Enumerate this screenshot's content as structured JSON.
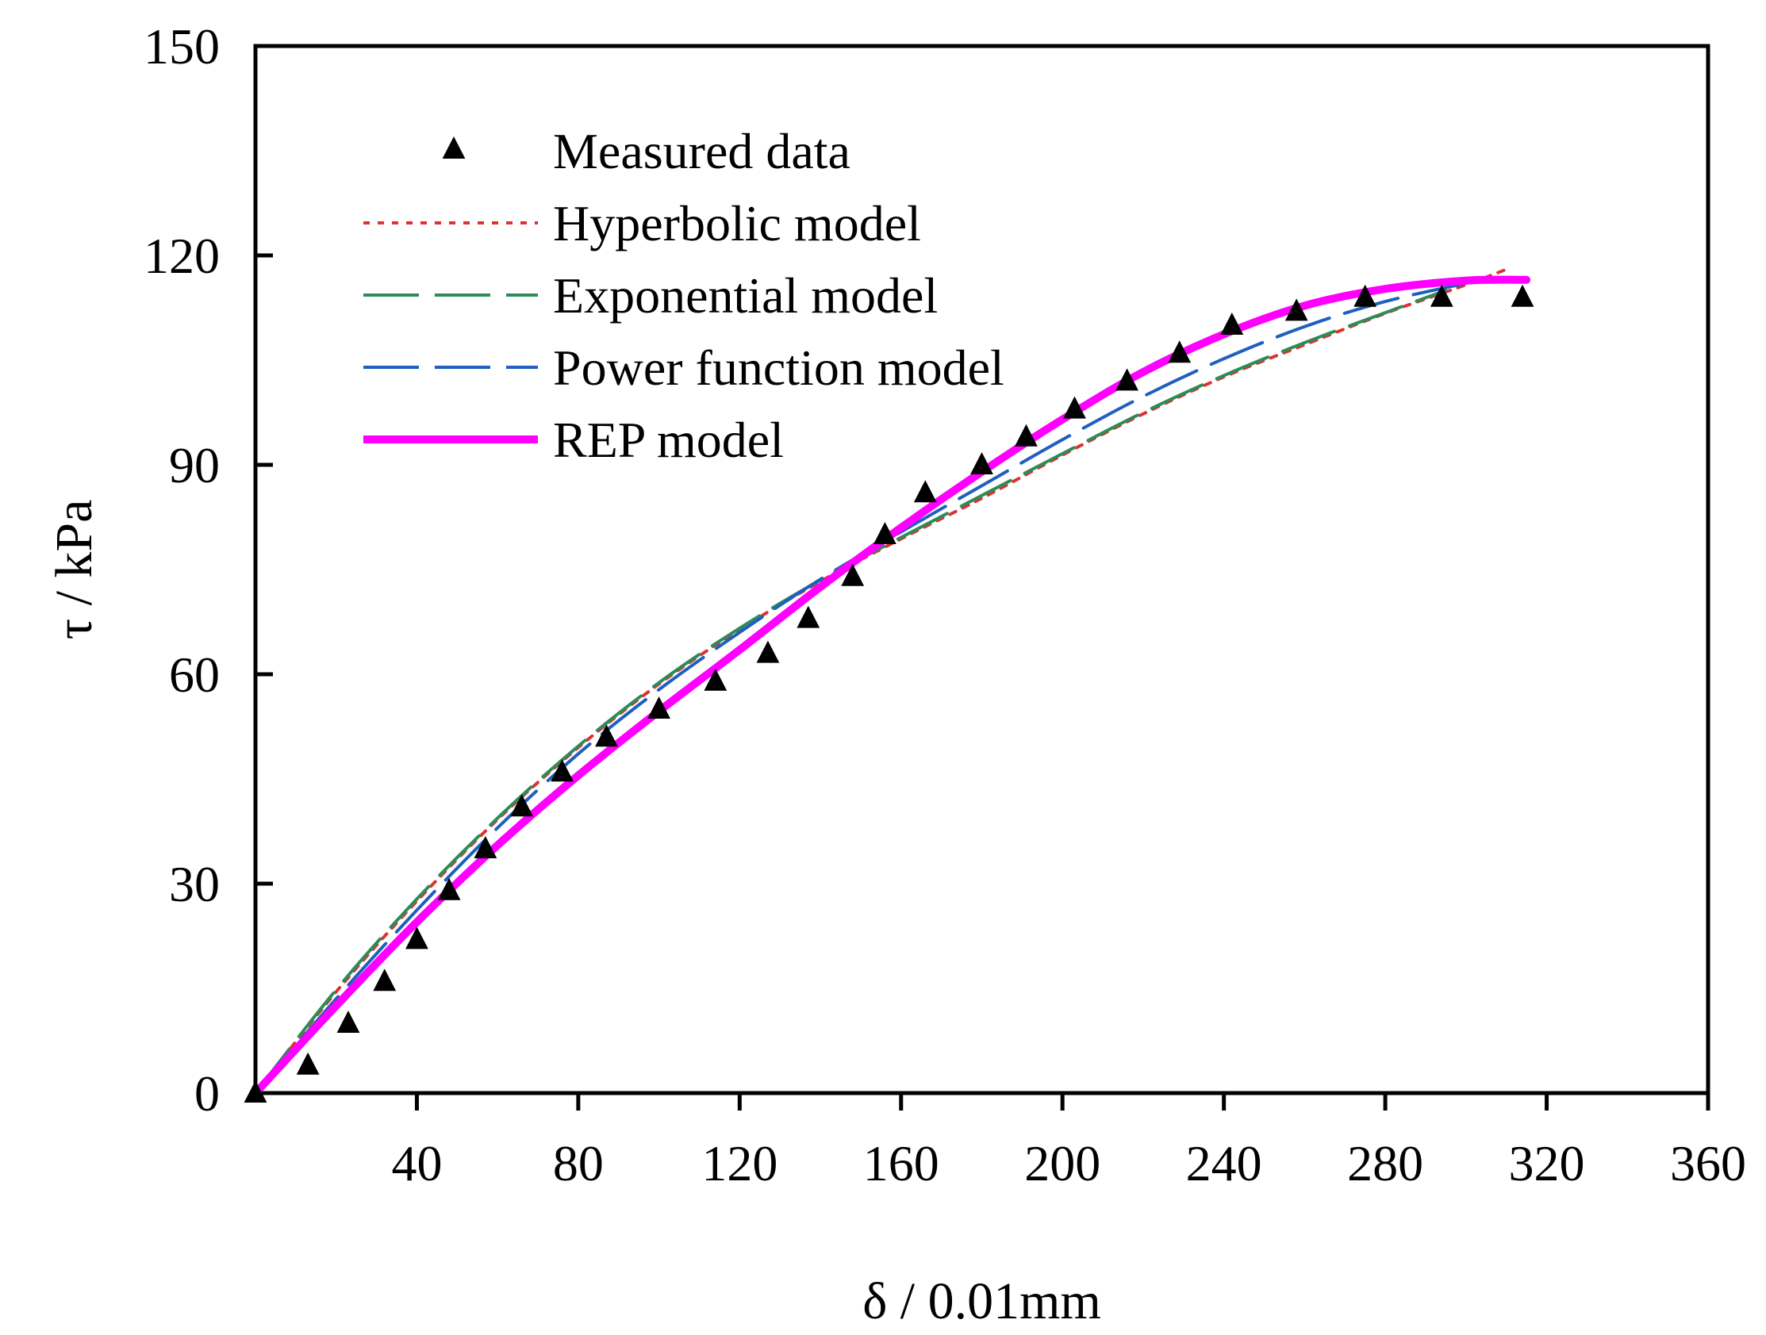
{
  "chart_data": {
    "type": "line",
    "title": "",
    "xlabel": "δ / 0.01mm",
    "ylabel": "τ / kPa",
    "xlim": [
      0,
      360
    ],
    "ylim": [
      0,
      150
    ],
    "xticks": [
      40,
      80,
      120,
      160,
      200,
      240,
      280,
      320,
      360
    ],
    "yticks": [
      0,
      30,
      60,
      90,
      120,
      150
    ],
    "xtick_labels": [
      "40",
      "80",
      "120",
      "160",
      "200",
      "240",
      "280",
      "320",
      "360"
    ],
    "ytick_labels": [
      "0",
      "30",
      "60",
      "90",
      "120",
      "150"
    ],
    "grid": false,
    "legend_position": "top-left",
    "series": [
      {
        "name": "Measured data",
        "kind": "scatter",
        "marker": "triangle",
        "color": "#000000",
        "x": [
          0,
          13,
          23,
          32,
          40,
          48,
          57,
          66,
          76,
          87,
          100,
          114,
          127,
          137,
          148,
          156,
          166,
          180,
          191,
          203,
          216,
          229,
          242,
          258,
          275,
          294,
          314
        ],
        "y": [
          0,
          4,
          10,
          16,
          22,
          29,
          35,
          41,
          46,
          51,
          55,
          59,
          63,
          68,
          74,
          80,
          86,
          90,
          94,
          98,
          102,
          106,
          110,
          112,
          114,
          114,
          114
        ]
      },
      {
        "name": "Hyperbolic model",
        "kind": "line",
        "style": "dotted",
        "color": "#e03030",
        "x": [
          0,
          20,
          40,
          60,
          80,
          100,
          120,
          140,
          160,
          180,
          200,
          220,
          240,
          260,
          280,
          300,
          310
        ],
        "y": [
          0,
          14.5,
          27.5,
          39.2,
          49.5,
          58.6,
          66.4,
          73.3,
          79.4,
          85.2,
          91.4,
          97.3,
          102.6,
          107.2,
          111.7,
          115.8,
          118
        ]
      },
      {
        "name": "Exponential model",
        "kind": "line",
        "style": "dashed",
        "color": "#2e8b57",
        "x": [
          0,
          20,
          40,
          60,
          80,
          100,
          120,
          140,
          160,
          180,
          200,
          220,
          240,
          260,
          280,
          295
        ],
        "y": [
          0,
          14.8,
          27.8,
          39.4,
          49.7,
          58.8,
          66.6,
          73.5,
          79.6,
          85.6,
          91.6,
          97.5,
          102.8,
          107.5,
          111.8,
          115
        ]
      },
      {
        "name": "Power function model",
        "kind": "line",
        "style": "dashed",
        "color": "#1f5fbf",
        "x": [
          0,
          20,
          40,
          60,
          80,
          100,
          120,
          140,
          160,
          180,
          200,
          220,
          240,
          260,
          280,
          300
        ],
        "y": [
          0,
          13.5,
          26.2,
          38,
          48.6,
          57.8,
          66,
          73.6,
          80.4,
          87,
          93.6,
          99.8,
          105.2,
          109.8,
          113.4,
          116
        ]
      },
      {
        "name": "REP model",
        "kind": "line",
        "style": "solid",
        "color": "#ff00ff",
        "x": [
          0,
          20,
          40,
          60,
          80,
          100,
          120,
          140,
          160,
          180,
          200,
          220,
          240,
          260,
          280,
          300,
          315
        ],
        "y": [
          0,
          12.5,
          24.5,
          35.5,
          45.5,
          54.7,
          63.5,
          72.5,
          81,
          89,
          96.5,
          103.3,
          108.7,
          112.8,
          115.2,
          116.4,
          116.5
        ]
      }
    ]
  }
}
